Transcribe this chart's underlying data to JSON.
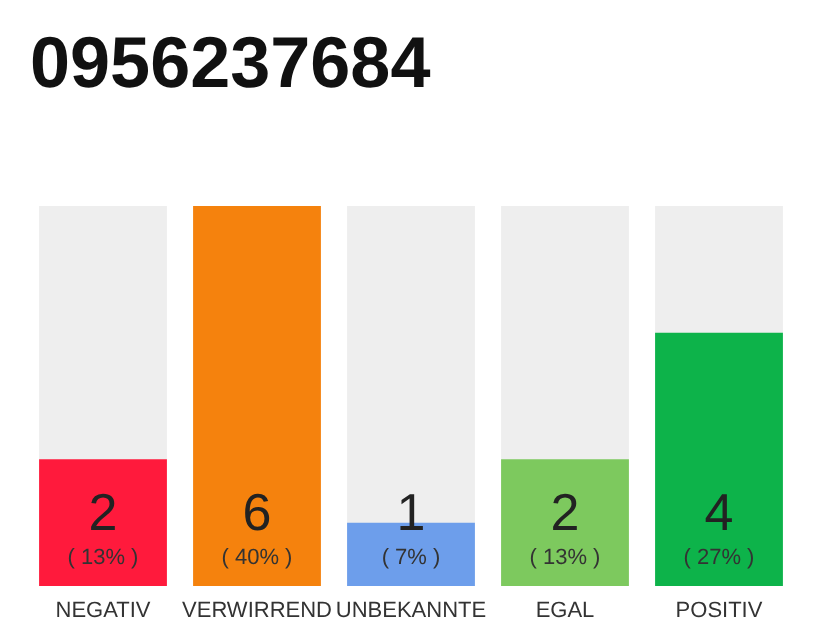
{
  "chart_data": {
    "type": "bar",
    "title": "0956237684",
    "categories": [
      "NEGATIV",
      "VERWIRREND",
      "UNBEKANNTE",
      "EGAL",
      "POSITIV"
    ],
    "values": [
      2,
      6,
      1,
      2,
      4
    ],
    "colors": [
      "#ff1a3c",
      "#f5820d",
      "#6d9eeb",
      "#7dc95e",
      "#0db34a"
    ],
    "value_labels": [
      "2\n( 13% )",
      "6\n( 40% )",
      "1\n( 7% )",
      "2\n( 13% )",
      "4\n( 27% )"
    ]
  }
}
